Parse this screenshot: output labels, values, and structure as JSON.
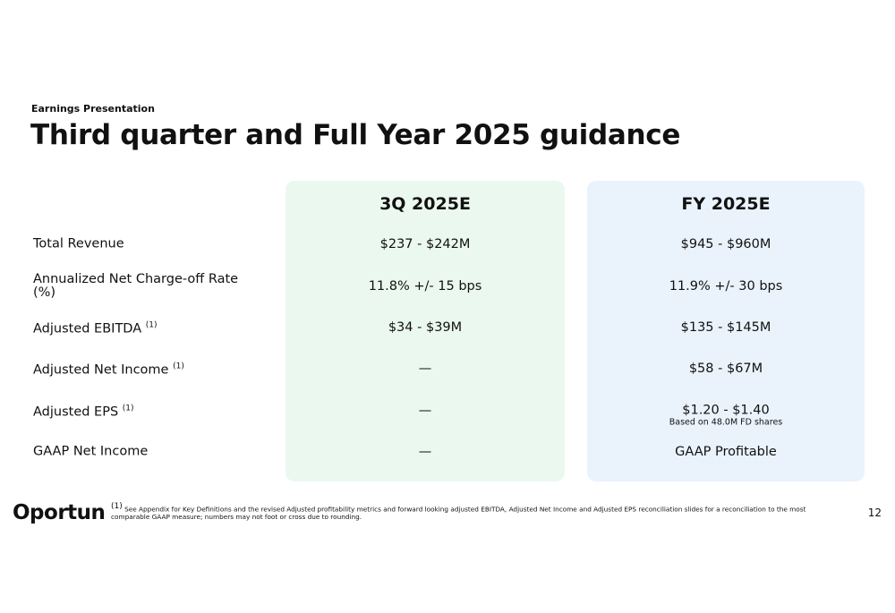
{
  "header": {
    "eyebrow": "Earnings Presentation",
    "title": "Third quarter and Full Year 2025 guidance"
  },
  "table": {
    "columns": [
      "3Q 2025E",
      "FY 2025E"
    ],
    "rows": [
      {
        "label": "Total Revenue",
        "values": [
          "$237 - $242M",
          "$945 - $960M"
        ]
      },
      {
        "label": "Annualized Net Charge-off Rate (%)",
        "values": [
          "11.8% +/- 15 bps",
          "11.9% +/- 30 bps"
        ]
      },
      {
        "label": "Adjusted EBITDA",
        "marker": "(1)",
        "values": [
          "$34 - $39M",
          "$135 - $145M"
        ]
      },
      {
        "label": "Adjusted Net Income",
        "marker": "(1)",
        "values": [
          "—",
          "$58 - $67M"
        ]
      },
      {
        "label": "Adjusted EPS",
        "marker": "(1)",
        "values": [
          "—",
          "$1.20 - $1.40"
        ],
        "note": "Based on 48.0M FD shares"
      },
      {
        "label": "GAAP Net Income",
        "values": [
          "—",
          "GAAP Profitable"
        ]
      }
    ]
  },
  "footer": {
    "logo": "Oportun",
    "marker": "(1)",
    "footnote": "See Appendix for Key Definitions and the revised Adjusted profitability metrics and forward looking adjusted EBITDA, Adjusted Net Income and Adjusted EPS reconciliation slides for a reconciliation to the most comparable GAAP measure; numbers may not foot or cross due to rounding.",
    "page": "12"
  }
}
